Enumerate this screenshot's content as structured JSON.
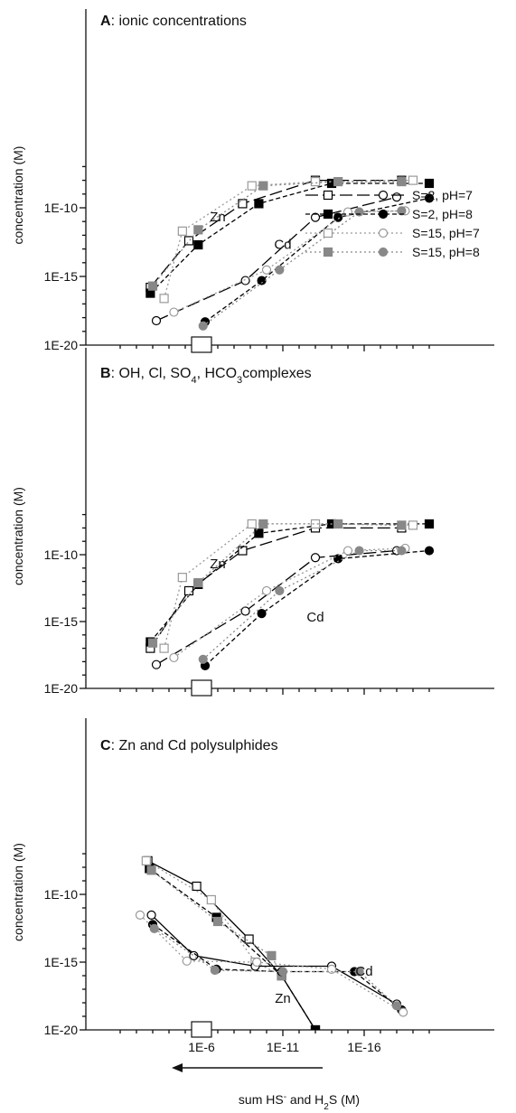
{
  "chart_data": [
    {
      "type": "line",
      "panel_letter": "A",
      "title": ": ionic concentrations",
      "ylabel": "concentration (M)",
      "y_scale": "log",
      "ylim": [
        1e-20,
        1e-07
      ],
      "y_ticks": [
        1e-20,
        1e-15,
        1e-10
      ],
      "y_tick_labels": [
        "1E-20",
        "1E-15",
        "1E-10"
      ],
      "xlim": [
        0.1,
        1e-20
      ],
      "x_ticks": [
        1e-06,
        1e-11,
        1e-16
      ],
      "x_tick_labels": [
        "",
        "",
        ""
      ],
      "annotations": [
        {
          "text": "Zn",
          "x": 1e-07,
          "y": 1e-11
        },
        {
          "text": "Cd",
          "x": 1e-11,
          "y": 1e-13
        }
      ],
      "legend_position": "right",
      "series": [
        {
          "name": "S=2, pH=7",
          "metal": "Zn",
          "color": "#000000",
          "marker": "open-square",
          "line": "long-dash",
          "points": [
            [
              0.0014,
              1.6e-16
            ],
            [
              6e-06,
              4e-13
            ],
            [
              3e-09,
              2e-10
            ],
            [
              1e-13,
              1e-08
            ],
            [
              5e-19,
              1e-08
            ]
          ]
        },
        {
          "name": "S=2, pH=8",
          "metal": "Zn",
          "color": "#000000",
          "marker": "filled-square",
          "line": "dashed",
          "points": [
            [
              0.0014,
              6e-17
            ],
            [
              1.6e-06,
              2e-13
            ],
            [
              3e-10,
              2e-10
            ],
            [
              1e-14,
              6e-09
            ],
            [
              1e-20,
              6e-09
            ]
          ]
        },
        {
          "name": "S=15, pH=7",
          "metal": "Zn",
          "color": "#999999",
          "marker": "open-square",
          "line": "dotted",
          "points": [
            [
              0.0002,
              2.5e-17
            ],
            [
              1.5e-05,
              2e-12
            ],
            [
              8e-10,
              4e-09
            ],
            [
              1e-13,
              8e-09
            ],
            [
              1e-19,
              1e-08
            ]
          ]
        },
        {
          "name": "S=15, pH=8",
          "metal": "Zn",
          "color": "#888888",
          "marker": "filled-square",
          "line": "dotted",
          "points": [
            [
              0.001,
              2e-16
            ],
            [
              1.6e-06,
              2.5e-12
            ],
            [
              1.6e-10,
              4e-09
            ],
            [
              4e-15,
              8e-09
            ],
            [
              5e-19,
              8e-09
            ]
          ]
        },
        {
          "name": "S=2, pH=7",
          "metal": "Cd",
          "color": "#000000",
          "marker": "open-circle",
          "line": "long-dash",
          "points": [
            [
              0.0006,
              6e-19
            ],
            [
              2e-09,
              5e-16
            ],
            [
              1e-13,
              2e-11
            ],
            [
              1e-18,
              6e-10
            ]
          ]
        },
        {
          "name": "S=2, pH=8",
          "metal": "Cd",
          "color": "#000000",
          "marker": "filled-circle",
          "line": "dashed",
          "points": [
            [
              6e-07,
              5e-19
            ],
            [
              2e-10,
              5e-16
            ],
            [
              4e-15,
              2e-11
            ],
            [
              1e-20,
              5e-10
            ]
          ]
        },
        {
          "name": "S=15, pH=7",
          "metal": "Cd",
          "color": "#999999",
          "marker": "open-circle",
          "line": "dotted",
          "points": [
            [
              5e-05,
              2.5e-18
            ],
            [
              1e-10,
              3e-15
            ],
            [
              1e-15,
              5e-11
            ],
            [
              3e-19,
              6e-11
            ]
          ]
        },
        {
          "name": "S=15, pH=8",
          "metal": "Cd",
          "color": "#888888",
          "marker": "filled-circle",
          "line": "dotted",
          "points": [
            [
              8e-07,
              2.5e-19
            ],
            [
              1.6e-11,
              3e-15
            ],
            [
              2e-16,
              5e-11
            ],
            [
              5e-19,
              6e-11
            ]
          ]
        }
      ]
    },
    {
      "type": "line",
      "panel_letter": "B",
      "title": ": OH, Cl, SO",
      "title_sub": "4",
      "title_mid": ", HCO",
      "title_sub2": "3",
      "title_end": "complexes",
      "ylabel": "concentration (M)",
      "y_scale": "log",
      "ylim": [
        1e-20,
        1e-07
      ],
      "y_ticks": [
        1e-20,
        1e-15,
        1e-10
      ],
      "y_tick_labels": [
        "1E-20",
        "1E-15",
        "1E-10"
      ],
      "xlim": [
        0.1,
        1e-20
      ],
      "x_ticks": [
        1e-06,
        1e-11,
        1e-16
      ],
      "x_tick_labels": [
        "",
        "",
        ""
      ],
      "annotations": [
        {
          "text": "Zn",
          "x": 1e-07,
          "y": 1e-11
        },
        {
          "text": "Cd",
          "x": 1e-13,
          "y": 1e-15
        }
      ],
      "series": [
        {
          "name": "S=2, pH=7",
          "metal": "Zn",
          "color": "#000000",
          "marker": "open-square",
          "line": "long-dash",
          "points": [
            [
              0.0014,
              1e-17
            ],
            [
              6e-06,
              2e-13
            ],
            [
              3e-09,
              2e-10
            ],
            [
              1e-13,
              1e-08
            ],
            [
              5e-19,
              1e-08
            ]
          ]
        },
        {
          "name": "S=2, pH=8",
          "metal": "Zn",
          "color": "#000000",
          "marker": "filled-square",
          "line": "dashed",
          "points": [
            [
              0.0014,
              3e-17
            ],
            [
              1.6e-06,
              6e-13
            ],
            [
              3e-10,
              4e-09
            ],
            [
              1e-14,
              2e-08
            ],
            [
              1e-20,
              2e-08
            ]
          ]
        },
        {
          "name": "S=15, pH=7",
          "metal": "Zn",
          "color": "#999999",
          "marker": "open-square",
          "line": "dotted",
          "points": [
            [
              0.0002,
              1e-17
            ],
            [
              1.5e-05,
              2e-12
            ],
            [
              8e-10,
              2e-08
            ],
            [
              1e-13,
              2e-08
            ],
            [
              1e-19,
              1.6e-08
            ]
          ]
        },
        {
          "name": "S=15, pH=8",
          "metal": "Zn",
          "color": "#888888",
          "marker": "filled-square",
          "line": "dotted",
          "points": [
            [
              0.001,
              2.5e-17
            ],
            [
              1.6e-06,
              8e-13
            ],
            [
              1.6e-10,
              2e-08
            ],
            [
              4e-15,
              2e-08
            ],
            [
              5e-19,
              1.6e-08
            ]
          ]
        },
        {
          "name": "S=2, pH=7",
          "metal": "Cd",
          "color": "#000000",
          "marker": "open-circle",
          "line": "long-dash",
          "points": [
            [
              0.0006,
              6e-19
            ],
            [
              2e-09,
              6e-15
            ],
            [
              1e-13,
              6e-11
            ],
            [
              1e-18,
              2e-10
            ]
          ]
        },
        {
          "name": "S=2, pH=8",
          "metal": "Cd",
          "color": "#000000",
          "marker": "filled-circle",
          "line": "dashed",
          "points": [
            [
              6e-07,
              5e-19
            ],
            [
              2e-10,
              4e-15
            ],
            [
              4e-15,
              5e-11
            ],
            [
              1e-20,
              2e-10
            ]
          ]
        },
        {
          "name": "S=15, pH=7",
          "metal": "Cd",
          "color": "#999999",
          "marker": "open-circle",
          "line": "dotted",
          "points": [
            [
              5e-05,
              2e-18
            ],
            [
              1e-10,
              2e-13
            ],
            [
              1e-15,
              2e-10
            ],
            [
              3e-19,
              3e-10
            ]
          ]
        },
        {
          "name": "S=15, pH=8",
          "metal": "Cd",
          "color": "#888888",
          "marker": "filled-circle",
          "line": "dotted",
          "points": [
            [
              8e-07,
              1.5e-18
            ],
            [
              1.6e-11,
              2e-13
            ],
            [
              2e-16,
              2e-10
            ],
            [
              5e-19,
              2e-10
            ]
          ]
        }
      ]
    },
    {
      "type": "line",
      "panel_letter": "C",
      "title": ": Zn and Cd polysulphides",
      "ylabel": "concentration (M)",
      "xlabel": "sum HS",
      "xlabel_sup": "-",
      "xlabel_mid": " and H",
      "xlabel_sub": "2",
      "xlabel_end": "S (M)",
      "y_scale": "log",
      "ylim": [
        1e-20,
        1e-07
      ],
      "y_ticks": [
        1e-20,
        1e-15,
        1e-10
      ],
      "y_tick_labels": [
        "1E-20",
        "1E-15",
        "1E-10"
      ],
      "xlim": [
        0.1,
        1e-20
      ],
      "x_ticks": [
        1e-06,
        1e-11,
        1e-16
      ],
      "x_tick_labels": [
        "1E-6",
        "1E-11",
        "1E-16"
      ],
      "annotations": [
        {
          "text": "Cd",
          "x": 1e-16,
          "y": 1e-16
        },
        {
          "text": "Zn",
          "x": 1e-11,
          "y": 1e-18
        }
      ],
      "series": [
        {
          "name": "S=2, pH=7",
          "metal": "Zn",
          "color": "#000000",
          "marker": "open-square",
          "line": "solid",
          "points": [
            [
              0.002,
              3e-08
            ],
            [
              2e-06,
              4e-10
            ],
            [
              1.2e-09,
              5e-14
            ],
            [
              1.2e-11,
              1e-16
            ],
            [
              1e-13,
              1e-20
            ]
          ]
        },
        {
          "name": "S=2, pH=8",
          "metal": "Zn",
          "color": "#000000",
          "marker": "filled-square",
          "line": "dashed",
          "points": [
            [
              0.0016,
              8e-09
            ],
            [
              1.2e-07,
              2e-12
            ],
            [
              1.2e-11,
              1e-16
            ],
            [
              1e-13,
              1e-20
            ]
          ]
        },
        {
          "name": "S=15, pH=7",
          "metal": "Zn",
          "color": "#999999",
          "marker": "open-square",
          "line": "dotted",
          "points": [
            [
              0.0025,
              3e-08
            ],
            [
              2.5e-07,
              4e-11
            ],
            [
              5e-10,
              1e-15
            ],
            [
              1.2e-11,
              1e-16
            ]
          ]
        },
        {
          "name": "S=15, pH=8",
          "metal": "Zn",
          "color": "#888888",
          "marker": "filled-square",
          "line": "dotted",
          "points": [
            [
              0.0012,
              6e-09
            ],
            [
              1e-07,
              1e-12
            ],
            [
              5e-11,
              3e-15
            ],
            [
              1.2e-11,
              1e-16
            ]
          ]
        },
        {
          "name": "S=2, pH=7",
          "metal": "Cd",
          "color": "#000000",
          "marker": "open-circle",
          "line": "solid",
          "points": [
            [
              0.0012,
              3e-12
            ],
            [
              3e-06,
              3e-15
            ],
            [
              5e-10,
              5e-16
            ],
            [
              1e-14,
              5e-16
            ],
            [
              1e-18,
              8e-19
            ]
          ]
        },
        {
          "name": "S=2, pH=8",
          "metal": "Cd",
          "color": "#000000",
          "marker": "filled-circle",
          "line": "dashed",
          "points": [
            [
              0.001,
              6e-13
            ],
            [
              1.2e-07,
              3e-16
            ],
            [
              1.2e-11,
              2e-16
            ],
            [
              4e-16,
              2e-16
            ],
            [
              5e-19,
              3e-19
            ]
          ]
        },
        {
          "name": "S=15, pH=7",
          "metal": "Cd",
          "color": "#999999",
          "marker": "open-circle",
          "line": "dotted",
          "points": [
            [
              0.006,
              3e-12
            ],
            [
              8e-06,
              1.2e-15
            ],
            [
              4e-10,
              1e-15
            ],
            [
              1e-14,
              3e-16
            ],
            [
              4e-19,
              2e-19
            ]
          ]
        },
        {
          "name": "S=15, pH=8",
          "metal": "Cd",
          "color": "#888888",
          "marker": "filled-circle",
          "line": "dotted",
          "points": [
            [
              0.0008,
              3e-13
            ],
            [
              1.5e-07,
              2.5e-16
            ],
            [
              1e-11,
              2e-16
            ],
            [
              2e-16,
              2e-16
            ],
            [
              1e-18,
              6e-19
            ]
          ]
        }
      ]
    }
  ]
}
